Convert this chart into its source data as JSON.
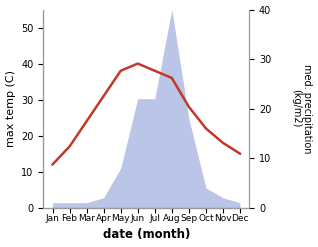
{
  "months": [
    "Jan",
    "Feb",
    "Mar",
    "Apr",
    "May",
    "Jun",
    "Jul",
    "Aug",
    "Sep",
    "Oct",
    "Nov",
    "Dec"
  ],
  "precipitation_kg": [
    1,
    1,
    1,
    2,
    8,
    22,
    22,
    40,
    18,
    4,
    2,
    1
  ],
  "temperature_C": [
    12,
    17,
    24,
    31,
    38,
    40,
    38,
    36,
    28,
    22,
    18,
    15
  ],
  "precip_fill_color": "#bbc5e8",
  "temp_color": "#c0392b",
  "left_ylabel": "max temp (C)",
  "right_ylabel": "med. precipitation\n(kg/m2)",
  "xlabel": "date (month)",
  "ylim_left": [
    0,
    55
  ],
  "ylim_right": [
    0,
    40
  ],
  "yticks_left": [
    0,
    10,
    20,
    30,
    40,
    50
  ],
  "yticks_right": [
    0,
    10,
    20,
    30,
    40
  ],
  "bg_color": "#ffffff"
}
